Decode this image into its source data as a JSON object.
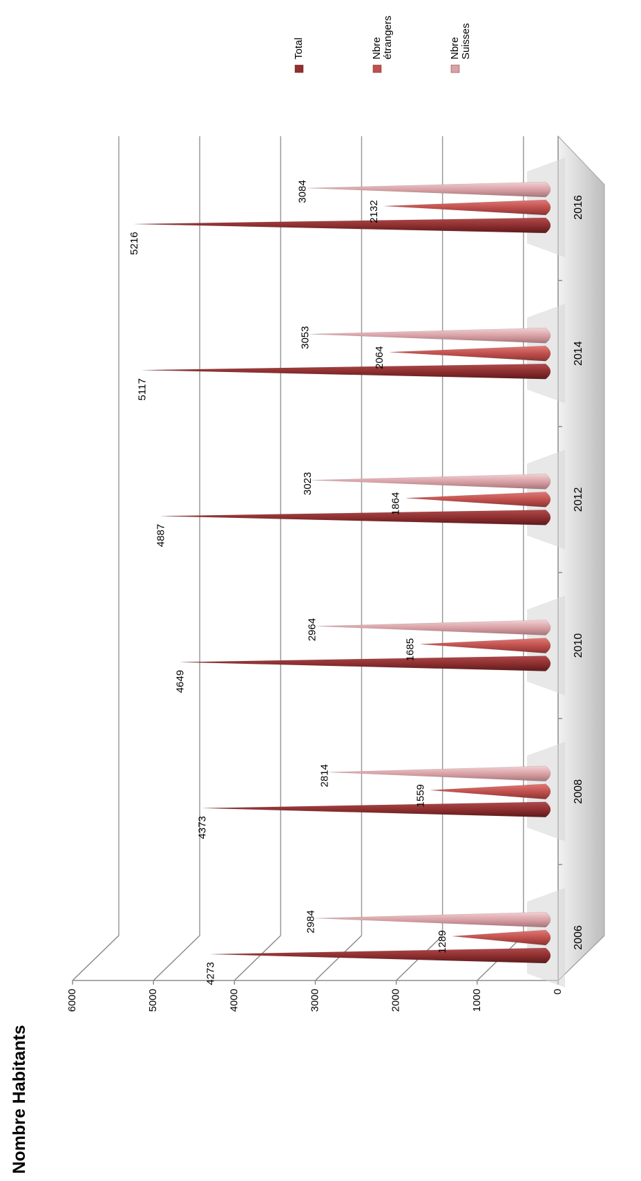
{
  "chart_data": {
    "type": "bar",
    "title": "Nombre Habitants",
    "categories": [
      "2006",
      "2008",
      "2010",
      "2012",
      "2014",
      "2016"
    ],
    "series": [
      {
        "name": "Total",
        "values": [
          4273,
          4373,
          4649,
          4887,
          5117,
          5216
        ],
        "color": "#8e2f30"
      },
      {
        "name": "Nbre étrangers",
        "values": [
          1289,
          1559,
          1685,
          1864,
          2064,
          2132
        ],
        "color": "#c0504d"
      },
      {
        "name": "Nbre Suisses",
        "values": [
          2984,
          2814,
          2964,
          3023,
          3053,
          3084
        ],
        "color": "#d9a2a6"
      }
    ],
    "ylim": [
      0,
      6000
    ],
    "yticks": [
      0,
      1000,
      2000,
      3000,
      4000,
      5000,
      6000
    ],
    "grid": true,
    "legend_position": "right",
    "data_labels": true,
    "orientation": "rotated 90° clockwise",
    "shape": "3D cones"
  }
}
